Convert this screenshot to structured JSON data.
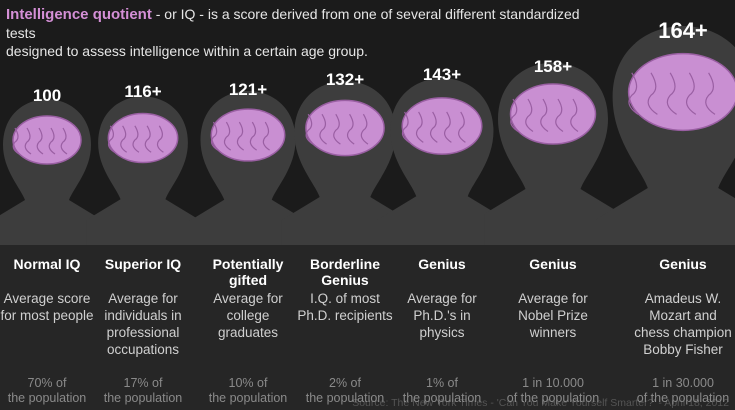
{
  "header": {
    "title": "Intelligence quotient",
    "line1": " - or IQ - is a score derived from one of several different standardized tests",
    "line2": "designed to assess intelligence within a certain age group."
  },
  "columns": [
    {
      "iq": "100",
      "label": "Normal IQ",
      "description": "Average score for most people",
      "share_top": "70% of",
      "share_bottom": "the population"
    },
    {
      "iq": "116+",
      "label": "Superior IQ",
      "description": "Average for individuals in professional occupations",
      "share_top": "17% of",
      "share_bottom": "the population"
    },
    {
      "iq": "121+",
      "label": "Potentially gifted",
      "description": "Average for college graduates",
      "share_top": "10% of",
      "share_bottom": "the population"
    },
    {
      "iq": "132+",
      "label": "Borderline Genius",
      "description": "I.Q. of most Ph.D. recipients",
      "share_top": "2% of",
      "share_bottom": "the population"
    },
    {
      "iq": "143+",
      "label": "Genius",
      "description": "Average for Ph.D.'s in physics",
      "share_top": "1% of",
      "share_bottom": "the population"
    },
    {
      "iq": "158+",
      "label": "Genius",
      "description": "Average for Nobel Prize winners",
      "share_top": "1 in 10.000",
      "share_bottom": "of the population"
    },
    {
      "iq": "164+",
      "label": "Genius",
      "description": "Amadeus W. Mozart and chess champion Bobby Fisher",
      "share_top": "1 in 30.000",
      "share_bottom": "of the population"
    }
  ],
  "source": "Source: The New York Times - 'Can You Make Yourself Smarter?' - April 18, 2012"
}
